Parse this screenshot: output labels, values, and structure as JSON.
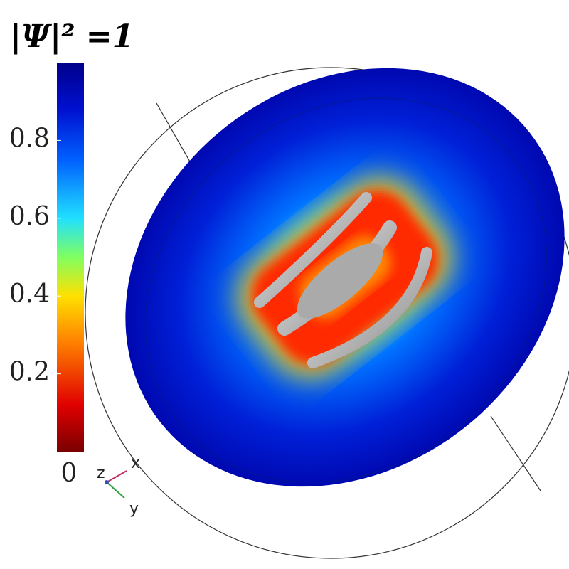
{
  "chart_data": {
    "type": "colormap",
    "title": "|Ψ|² =1",
    "colorbar": {
      "lim": [
        0,
        1
      ],
      "ticks": [
        0,
        0.2,
        0.4,
        0.6,
        0.8
      ]
    },
    "axis_labels": [
      "z",
      "x",
      "y"
    ]
  }
}
